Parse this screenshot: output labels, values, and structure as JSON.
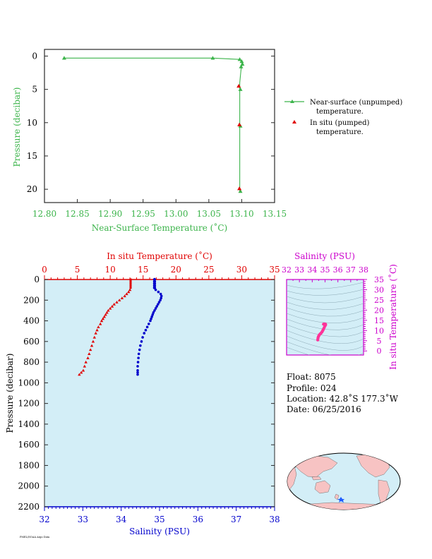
{
  "chart_data": [
    {
      "type": "line",
      "xlabel": "Near-Surface Temperature (˚C)",
      "ylabel": "Pressure (decibar)",
      "xlim": [
        12.8,
        13.15
      ],
      "ylim": [
        22,
        -1
      ],
      "x_ticks": [
        "12.80",
        "12.85",
        "12.90",
        "12.95",
        "13.00",
        "13.05",
        "13.10",
        "13.15"
      ],
      "y_ticks": [
        "0",
        "5",
        "10",
        "15",
        "20"
      ],
      "series": [
        {
          "name": "Near-surface (unpumped) temperature.",
          "color": "#3cb44b",
          "marker": "triangle",
          "points": [
            [
              12.83,
              0.3
            ],
            [
              13.056,
              0.3
            ],
            [
              13.097,
              0.5
            ],
            [
              13.099,
              0.8
            ],
            [
              13.101,
              1.2
            ],
            [
              13.1,
              1.6
            ],
            [
              13.099,
              2.0
            ],
            [
              13.098,
              3.0
            ],
            [
              13.097,
              4.0
            ],
            [
              13.097,
              5.0
            ],
            [
              13.097,
              7.0
            ],
            [
              13.097,
              9.0
            ],
            [
              13.097,
              10.5
            ],
            [
              13.097,
              13.0
            ],
            [
              13.097,
              16.0
            ],
            [
              13.097,
              19.0
            ],
            [
              13.097,
              20.3
            ]
          ],
          "marked_points": [
            [
              12.83,
              0.3
            ],
            [
              13.056,
              0.3
            ],
            [
              13.097,
              0.5
            ],
            [
              13.1,
              0.8
            ],
            [
              13.101,
              1.2
            ],
            [
              13.099,
              1.6
            ],
            [
              13.098,
              5.0
            ],
            [
              13.098,
              10.5
            ],
            [
              13.098,
              20.3
            ]
          ]
        },
        {
          "name": "In situ (pumped) temperature.",
          "color": "#e00000",
          "marker": "triangle",
          "points": [
            [
              13.096,
              4.5
            ],
            [
              13.097,
              10.3
            ],
            [
              13.097,
              19.9
            ]
          ]
        }
      ]
    },
    {
      "type": "scatter",
      "top_axis_label": "In situ Temperature (˚C)",
      "xlabel": "Salinity (PSU)",
      "ylabel": "Pressure (decibar)",
      "temp_lim": [
        0,
        35
      ],
      "sal_lim": [
        32,
        38
      ],
      "ylim": [
        2200,
        0
      ],
      "temp_ticks": [
        "0",
        "5",
        "10",
        "15",
        "20",
        "25",
        "30",
        "35"
      ],
      "sal_ticks": [
        "32",
        "33",
        "34",
        "35",
        "36",
        "37",
        "38"
      ],
      "p_ticks": [
        "0",
        "200",
        "400",
        "600",
        "800",
        "1000",
        "1200",
        "1400",
        "1600",
        "1800",
        "2000",
        "2200"
      ],
      "series": [
        {
          "name": "In situ Temperature",
          "color": "#e00000",
          "marker": "triangle",
          "points": [
            [
              13.1,
              0
            ],
            [
              13.1,
              20
            ],
            [
              13.1,
              40
            ],
            [
              13.1,
              60
            ],
            [
              13.1,
              80
            ],
            [
              13.0,
              100
            ],
            [
              12.8,
              120
            ],
            [
              12.5,
              140
            ],
            [
              12.2,
              160
            ],
            [
              11.8,
              180
            ],
            [
              11.4,
              200
            ],
            [
              11.0,
              220
            ],
            [
              10.6,
              240
            ],
            [
              10.3,
              260
            ],
            [
              10.0,
              280
            ],
            [
              9.7,
              300
            ],
            [
              9.5,
              320
            ],
            [
              9.3,
              340
            ],
            [
              9.1,
              360
            ],
            [
              8.9,
              380
            ],
            [
              8.7,
              400
            ],
            [
              8.5,
              430
            ],
            [
              8.2,
              460
            ],
            [
              8.0,
              490
            ],
            [
              7.8,
              520
            ],
            [
              7.6,
              560
            ],
            [
              7.4,
              600
            ],
            [
              7.2,
              640
            ],
            [
              7.0,
              680
            ],
            [
              6.8,
              720
            ],
            [
              6.6,
              760
            ],
            [
              6.3,
              800
            ],
            [
              6.1,
              840
            ],
            [
              5.9,
              880
            ],
            [
              5.6,
              900
            ],
            [
              5.3,
              920
            ]
          ]
        },
        {
          "name": "Salinity",
          "color": "#0000cc",
          "marker": "circle",
          "points": [
            [
              34.87,
              0
            ],
            [
              34.87,
              20
            ],
            [
              34.87,
              40
            ],
            [
              34.87,
              60
            ],
            [
              34.87,
              80
            ],
            [
              34.9,
              100
            ],
            [
              34.97,
              120
            ],
            [
              35.03,
              140
            ],
            [
              35.05,
              160
            ],
            [
              35.04,
              180
            ],
            [
              35.02,
              200
            ],
            [
              34.99,
              220
            ],
            [
              34.96,
              240
            ],
            [
              34.93,
              260
            ],
            [
              34.9,
              280
            ],
            [
              34.87,
              300
            ],
            [
              34.84,
              320
            ],
            [
              34.82,
              340
            ],
            [
              34.8,
              360
            ],
            [
              34.78,
              380
            ],
            [
              34.76,
              400
            ],
            [
              34.72,
              430
            ],
            [
              34.68,
              460
            ],
            [
              34.64,
              490
            ],
            [
              34.6,
              520
            ],
            [
              34.56,
              560
            ],
            [
              34.53,
              600
            ],
            [
              34.5,
              640
            ],
            [
              34.48,
              680
            ],
            [
              34.46,
              720
            ],
            [
              34.45,
              760
            ],
            [
              34.44,
              800
            ],
            [
              34.43,
              840
            ],
            [
              34.43,
              880
            ],
            [
              34.43,
              900
            ],
            [
              34.43,
              920
            ]
          ]
        }
      ]
    },
    {
      "type": "scatter",
      "top_axis_label": "Salinity (PSU)",
      "right_axis_label": "In situ Temperature (˚C)",
      "xlim": [
        32,
        38
      ],
      "ylim": [
        -2,
        35
      ],
      "x_ticks": [
        "32",
        "33",
        "34",
        "35",
        "36",
        "37",
        "38"
      ],
      "y_ticks": [
        "0",
        "5",
        "10",
        "15",
        "20",
        "25",
        "30",
        "35"
      ],
      "color": "#ff3399",
      "points": [
        [
          34.43,
          5.4
        ],
        [
          34.45,
          6.3
        ],
        [
          34.48,
          7.0
        ],
        [
          34.53,
          7.6
        ],
        [
          34.6,
          8.2
        ],
        [
          34.68,
          8.7
        ],
        [
          34.76,
          9.3
        ],
        [
          34.82,
          10.0
        ],
        [
          34.87,
          10.6
        ],
        [
          34.93,
          11.4
        ],
        [
          34.99,
          12.2
        ],
        [
          35.04,
          12.8
        ],
        [
          35.03,
          13.1
        ],
        [
          34.95,
          13.2
        ],
        [
          34.88,
          13.1
        ]
      ]
    }
  ],
  "legend": {
    "unpumped": "Near-surface (unpumped)",
    "unpumped_2": "temperature.",
    "pumped": "In situ (pumped)",
    "pumped_2": "temperature."
  },
  "info": {
    "float": "Float:  8075",
    "profile": "Profile:  024",
    "location": "Location:  42.8˚S  177.3˚W",
    "date": "Date:  06/25/2016"
  },
  "footer_text": "PMEL/NOAA Argo Data",
  "colors": {
    "green": "#3cb44b",
    "red": "#e00000",
    "blue": "#0000cc",
    "magenta": "#cc00cc",
    "plot_bg": "#d3eef7",
    "land": "#f7c3c3",
    "ocean": "#d3eef7",
    "float_marker": "#1e5cff"
  }
}
